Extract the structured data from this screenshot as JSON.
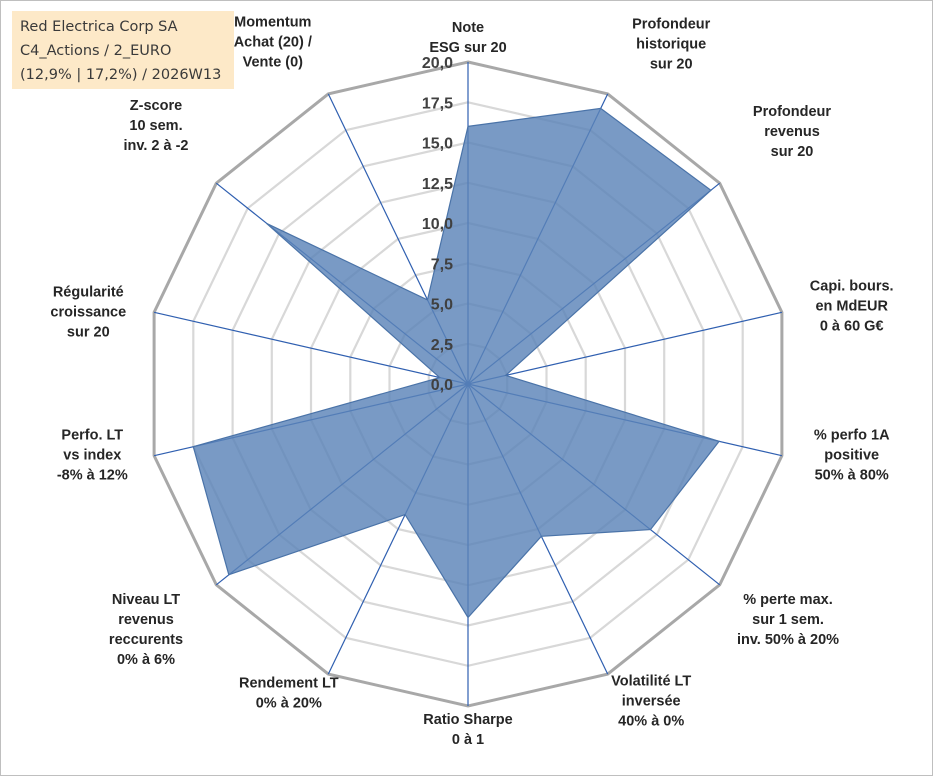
{
  "info": {
    "company": "Red Electrica Corp SA",
    "category": "C4_Actions / 2_EURO",
    "stats": "(12,9% | 17,2%) / 2026W13"
  },
  "chart_data": {
    "type": "radar",
    "title": "Red Electrica Corp SA",
    "axis_min": 0,
    "axis_max": 20,
    "tick_step": 2.5,
    "tick_labels": [
      "0,0",
      "2,5",
      "5,0",
      "7,5",
      "10,0",
      "12,5",
      "15,0",
      "17,5",
      "20,0"
    ],
    "axes": [
      {
        "label": [
          "Note",
          "ESG sur 20"
        ],
        "value": 16.0
      },
      {
        "label": [
          "Profondeur",
          "historique",
          "sur 20"
        ],
        "value": 19.0
      },
      {
        "label": [
          "Profondeur",
          "revenus",
          "sur 20"
        ],
        "value": 19.3
      },
      {
        "label": [
          "Capi. bours.",
          "en MdEUR",
          "0 à 60 G€"
        ],
        "value": 2.4
      },
      {
        "label": [
          "% perfo 1A",
          "positive",
          "50% à 80%"
        ],
        "value": 16.0
      },
      {
        "label": [
          "% perte max.",
          "sur 1 sem.",
          "inv. 50% à 20%"
        ],
        "value": 14.5
      },
      {
        "label": [
          "Volatilité LT",
          "inversée",
          "40% à 0%"
        ],
        "value": 10.5
      },
      {
        "label": [
          "Ratio Sharpe",
          "0 à 1"
        ],
        "value": 14.5
      },
      {
        "label": [
          "Rendement LT",
          "0% à 20%"
        ],
        "value": 9.0
      },
      {
        "label": [
          "Niveau LT",
          "revenus",
          "reccurents",
          "0% à 6%"
        ],
        "value": 19.0
      },
      {
        "label": [
          "Perfo. LT",
          "vs index",
          "-8% à 12%"
        ],
        "value": 17.5
      },
      {
        "label": [
          "Régularité",
          "croissance",
          "sur 20"
        ],
        "value": 1.8
      },
      {
        "label": [
          "Z-score",
          "10 sem.",
          "inv. 2 à -2"
        ],
        "value": 16.0
      },
      {
        "label": [
          "Momentum",
          "Achat (20) /",
          "Vente (0)"
        ],
        "value": 5.8
      }
    ],
    "colors": {
      "fill": "#5b84b8",
      "fill_opacity": "0.82",
      "outline": "#4a73a8",
      "spoke": "#2f5fb0",
      "grid_outer": "#a8a8a8",
      "grid_inner": "#d8d8d8"
    }
  }
}
